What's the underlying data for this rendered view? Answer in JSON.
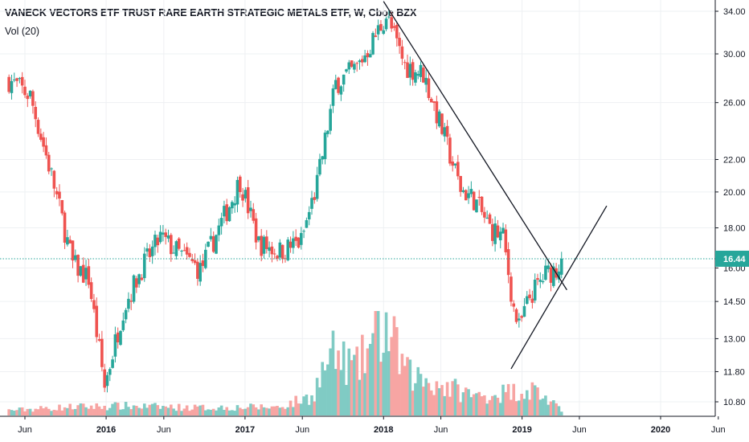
{
  "header": {
    "title": "VANECK VECTORS ETF TRUST RARE EARTH STRATEGIC METALS ETF, W, Cboe BZX",
    "volume_label": "Vol (20)"
  },
  "chart_data": {
    "type": "candlestick",
    "title": "VANECK VECTORS ETF TRUST RARE EARTH STRATEGIC METALS ETF, W, Cboe BZX",
    "price_scale": "log",
    "ylim": [
      10.4,
      35.0
    ],
    "y_ticks": [
      {
        "value": 34.0,
        "label": "34.00"
      },
      {
        "value": 30.0,
        "label": "30.00"
      },
      {
        "value": 26.0,
        "label": "26.00"
      },
      {
        "value": 22.0,
        "label": "22.00"
      },
      {
        "value": 20.0,
        "label": "20.00"
      },
      {
        "value": 18.0,
        "label": "18.00"
      },
      {
        "value": 16.0,
        "label": "16.00"
      },
      {
        "value": 14.5,
        "label": "14.50"
      },
      {
        "value": 13.0,
        "label": "13.00"
      },
      {
        "value": 11.8,
        "label": "11.80"
      },
      {
        "value": 10.8,
        "label": "10.80"
      }
    ],
    "x_ticks": [
      {
        "date": "2015-06-01",
        "label": "Jun"
      },
      {
        "date": "2016-01-01",
        "label": "2016"
      },
      {
        "date": "2016-06-01",
        "label": "Jun"
      },
      {
        "date": "2017-01-01",
        "label": "2017"
      },
      {
        "date": "2017-06-01",
        "label": "Jun"
      },
      {
        "date": "2018-01-01",
        "label": "2018"
      },
      {
        "date": "2018-06-01",
        "label": "Jun"
      },
      {
        "date": "2019-01-01",
        "label": "2019"
      },
      {
        "date": "2019-06-01",
        "label": "Jun"
      },
      {
        "date": "2020-01-01",
        "label": "2020"
      },
      {
        "date": "2020-06-01",
        "label": "Jun"
      }
    ],
    "last_price": 16.44,
    "last_price_label": "16.44",
    "key_closes": [
      {
        "date": "2015-04-20",
        "close": 27.8
      },
      {
        "date": "2015-06-15",
        "close": 26.5
      },
      {
        "date": "2015-08-10",
        "close": 21.0
      },
      {
        "date": "2015-10-05",
        "close": 16.2
      },
      {
        "date": "2015-11-16",
        "close": 15.5
      },
      {
        "date": "2015-12-28",
        "close": 11.3
      },
      {
        "date": "2016-02-15",
        "close": 14.2
      },
      {
        "date": "2016-04-04",
        "close": 16.0
      },
      {
        "date": "2016-05-23",
        "close": 17.5
      },
      {
        "date": "2016-07-11",
        "close": 16.7
      },
      {
        "date": "2016-09-05",
        "close": 15.9
      },
      {
        "date": "2016-11-07",
        "close": 18.6
      },
      {
        "date": "2016-12-19",
        "close": 20.7
      },
      {
        "date": "2017-02-06",
        "close": 17.2
      },
      {
        "date": "2017-04-03",
        "close": 16.8
      },
      {
        "date": "2017-05-29",
        "close": 17.3
      },
      {
        "date": "2017-07-10",
        "close": 20.5
      },
      {
        "date": "2017-08-28",
        "close": 27.5
      },
      {
        "date": "2017-10-23",
        "close": 28.8
      },
      {
        "date": "2017-12-04",
        "close": 31.2
      },
      {
        "date": "2018-01-08",
        "close": 33.6
      },
      {
        "date": "2018-02-26",
        "close": 29.0
      },
      {
        "date": "2018-04-16",
        "close": 28.3
      },
      {
        "date": "2018-06-04",
        "close": 24.0
      },
      {
        "date": "2018-07-23",
        "close": 20.2
      },
      {
        "date": "2018-08-27",
        "close": 19.6
      },
      {
        "date": "2018-10-08",
        "close": 18.0
      },
      {
        "date": "2018-11-12",
        "close": 17.5
      },
      {
        "date": "2018-12-10",
        "close": 14.2
      },
      {
        "date": "2018-12-24",
        "close": 13.4
      },
      {
        "date": "2019-01-21",
        "close": 14.7
      },
      {
        "date": "2019-03-04",
        "close": 15.7
      },
      {
        "date": "2019-04-01",
        "close": 16.0
      },
      {
        "date": "2019-04-15",
        "close": 16.44
      }
    ],
    "volume_profile": [
      {
        "date": "2015-04-20",
        "volume": 0.06
      },
      {
        "date": "2015-10-05",
        "volume": 0.1
      },
      {
        "date": "2016-02-15",
        "volume": 0.11
      },
      {
        "date": "2016-09-05",
        "volume": 0.09
      },
      {
        "date": "2017-04-03",
        "volume": 0.1
      },
      {
        "date": "2017-06-26",
        "volume": 0.22
      },
      {
        "date": "2017-08-14",
        "volume": 0.7
      },
      {
        "date": "2017-10-23",
        "volume": 0.55
      },
      {
        "date": "2017-12-11",
        "volume": 0.9
      },
      {
        "date": "2018-01-08",
        "volume": 1.0
      },
      {
        "date": "2018-03-05",
        "volume": 0.48
      },
      {
        "date": "2018-06-04",
        "volume": 0.35
      },
      {
        "date": "2018-09-03",
        "volume": 0.22
      },
      {
        "date": "2018-12-10",
        "volume": 0.28
      },
      {
        "date": "2019-02-04",
        "volume": 0.3
      },
      {
        "date": "2019-04-15",
        "volume": 0.05
      }
    ],
    "trendlines": [
      {
        "name": "descending",
        "from": {
          "date": "2018-01-01",
          "price": 35.0
        },
        "to": {
          "date": "2019-04-29",
          "price": 15.0
        }
      },
      {
        "name": "ascending",
        "from": {
          "date": "2018-12-03",
          "price": 11.9
        },
        "to": {
          "date": "2019-08-12",
          "price": 19.2
        }
      }
    ],
    "colors": {
      "up": "#26a69a",
      "down": "#ef5350",
      "up_volume": "#80cbc4",
      "down_volume": "#f7a5a3",
      "last_price": "#26a69a",
      "trendline": "#131722"
    },
    "grid": true,
    "legend": "top-left"
  }
}
